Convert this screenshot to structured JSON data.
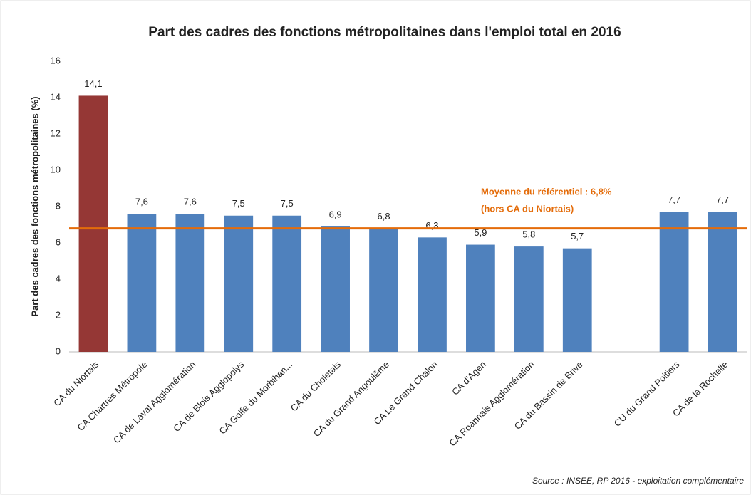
{
  "chart_data": {
    "type": "bar",
    "title": "Part des cadres des fonctions métropolitaines dans l'emploi total en 2016",
    "y_label": "Part des cadres des fonctions métropolitaines (%)",
    "categories": [
      "CA du Niortais",
      "CA Chartres Métropole",
      "CA de Laval Agglomération",
      "CA de Blois Agglopolys",
      "CA Golfe du Morbihan...",
      "CA du Choletais",
      "CA du Grand Angoulême",
      "CA Le Grand Chalon",
      "CA d'Agen",
      "CA Roannais Agglomération",
      "CA du Bassin de Brive",
      null,
      "CU du Grand Poitiers",
      "CA de la Rochelle"
    ],
    "values": [
      14.1,
      7.6,
      7.6,
      7.5,
      7.5,
      6.9,
      6.8,
      6.3,
      5.9,
      5.8,
      5.7,
      null,
      7.7,
      7.7
    ],
    "value_labels": [
      "14,1",
      "7,6",
      "7,6",
      "7,5",
      "7,5",
      "6,9",
      "6,8",
      "6,3",
      "5,9",
      "5,8",
      "5,7",
      null,
      "7,7",
      "7,7"
    ],
    "colors": [
      "#953735",
      "#4f81bd",
      "#4f81bd",
      "#4f81bd",
      "#4f81bd",
      "#4f81bd",
      "#4f81bd",
      "#4f81bd",
      "#4f81bd",
      "#4f81bd",
      "#4f81bd",
      null,
      "#4f81bd",
      "#4f81bd"
    ],
    "ylim": [
      0,
      16
    ],
    "yticks": [
      0,
      2,
      4,
      6,
      8,
      10,
      12,
      14,
      16
    ],
    "grid": false,
    "reference_line": {
      "value": 6.8,
      "color": "#e46c0a",
      "label": [
        "Moyenne du référentiel : 6,8%",
        "(hors CA du Niortais)"
      ]
    },
    "source": "Source : INSEE, RP 2016 - exploitation complémentaire"
  }
}
